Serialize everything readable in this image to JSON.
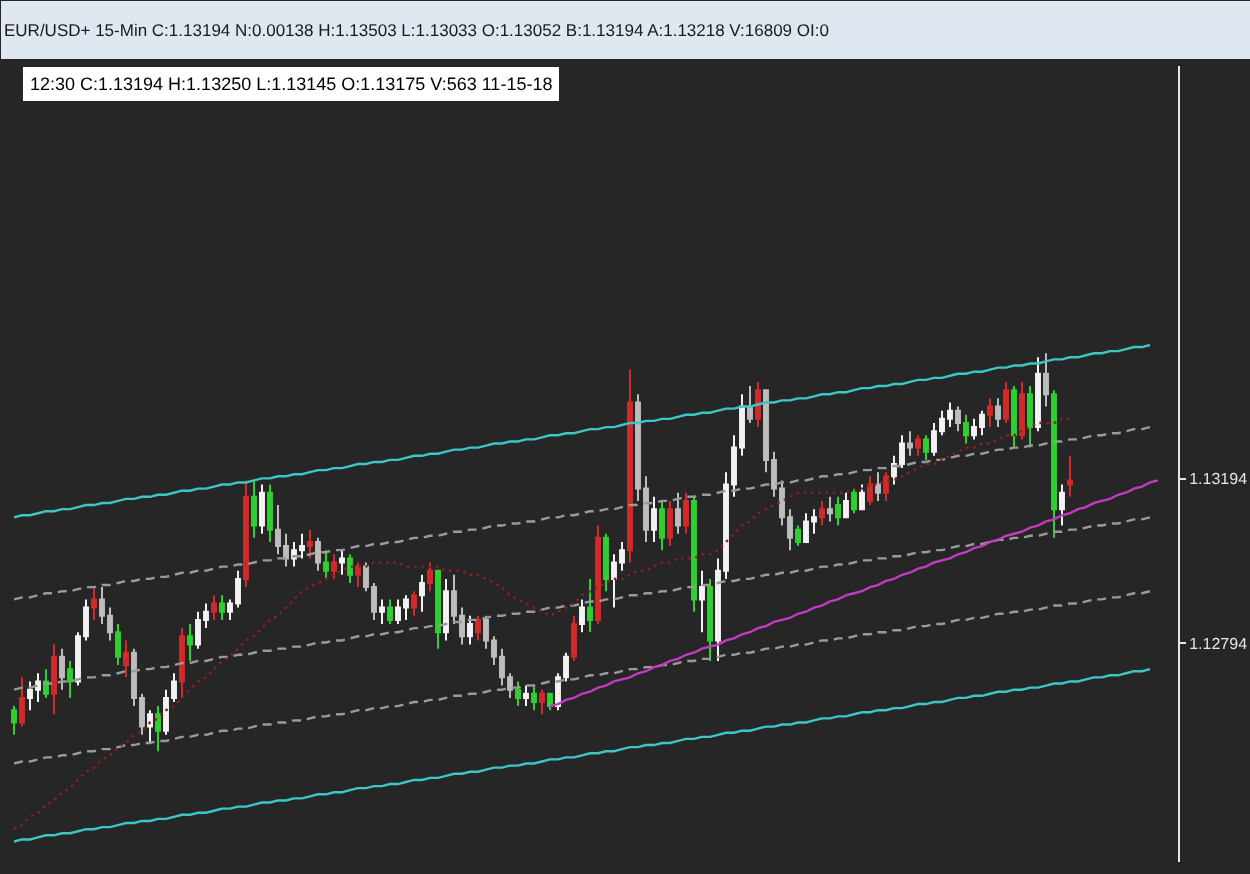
{
  "chart_data": {
    "type": "candlestick",
    "title": "EUR/USD+ 15-Min C:1.13194 N:0.00138 H:1.13503 L:1.13033 O:1.13052 B:1.13194 A:1.13218 V:16809 OI:0",
    "subtitle": "12:30 C:1.13194 H:1.13250 L:1.13145 O:1.13175 V:563 11-15-18",
    "categories": [
      null,
      null,
      null,
      null,
      null,
      null,
      null,
      null,
      null,
      null,
      null,
      null,
      null,
      null,
      null,
      null,
      null,
      null,
      null,
      null,
      null,
      null,
      null,
      null,
      null,
      null,
      null,
      null,
      null,
      null,
      null,
      null,
      null,
      null,
      null,
      null,
      null,
      null,
      null,
      null,
      null,
      null,
      null,
      null,
      null,
      null,
      null,
      null,
      null,
      null,
      null,
      null,
      null,
      null,
      null,
      null,
      null,
      null,
      null,
      null,
      null,
      null,
      null,
      null,
      null,
      null,
      null,
      null,
      null,
      null,
      null,
      null,
      null,
      null,
      null,
      null,
      null,
      null,
      null,
      null,
      null,
      null,
      null,
      null,
      null,
      null,
      null,
      null,
      null,
      null,
      null,
      null,
      null,
      null,
      null,
      null,
      null,
      null,
      null,
      null,
      null,
      null,
      null,
      null,
      null,
      null,
      null,
      null,
      null,
      null,
      null,
      null,
      null,
      null,
      null,
      null,
      null,
      null,
      null,
      null,
      null,
      null,
      null,
      null,
      null,
      null,
      null,
      null,
      null,
      null,
      null,
      null,
      null,
      null,
      null,
      null,
      null,
      null,
      null,
      null,
      null,
      null,
      null,
      null,
      null,
      null
    ],
    "ohlc": [
      [
        1.1263,
        1.1264,
        1.1257,
        1.126
      ],
      [
        1.126,
        1.1271,
        1.1259,
        1.1266
      ],
      [
        1.1266,
        1.127,
        1.1263,
        1.1268
      ],
      [
        1.1268,
        1.1272,
        1.1265,
        1.127
      ],
      [
        1.127,
        1.1273,
        1.1266,
        1.1267
      ],
      [
        1.1267,
        1.1279,
        1.1262,
        1.1276
      ],
      [
        1.1276,
        1.1278,
        1.1268,
        1.1271
      ],
      [
        1.1273,
        1.1275,
        1.1266,
        1.127
      ],
      [
        1.127,
        1.1282,
        1.1269,
        1.1281
      ],
      [
        1.1281,
        1.129,
        1.128,
        1.1288
      ],
      [
        1.1288,
        1.1293,
        1.1285,
        1.129
      ],
      [
        1.129,
        1.1293,
        1.1284,
        1.1286
      ],
      [
        1.1286,
        1.1288,
        1.128,
        1.1282
      ],
      [
        1.1282,
        1.1284,
        1.1274,
        1.1276
      ],
      [
        1.1274,
        1.128,
        1.1271,
        1.1277
      ],
      [
        1.1277,
        1.1278,
        1.1264,
        1.1266
      ],
      [
        1.1266,
        1.1267,
        1.1257,
        1.1259
      ],
      [
        1.1259,
        1.1263,
        1.1255,
        1.1262
      ],
      [
        1.1262,
        1.1264,
        1.1253,
        1.1258
      ],
      [
        1.1258,
        1.1268,
        1.1257,
        1.1266
      ],
      [
        1.1266,
        1.1272,
        1.1265,
        1.127
      ],
      [
        1.127,
        1.1283,
        1.1266,
        1.1281
      ],
      [
        1.1281,
        1.1284,
        1.1275,
        1.1279
      ],
      [
        1.1279,
        1.1287,
        1.1278,
        1.1285
      ],
      [
        1.1285,
        1.1289,
        1.1283,
        1.1287
      ],
      [
        1.1287,
        1.1291,
        1.1285,
        1.1289
      ],
      [
        1.1289,
        1.1291,
        1.1285,
        1.1287
      ],
      [
        1.1287,
        1.129,
        1.1285,
        1.1289
      ],
      [
        1.1289,
        1.1297,
        1.1288,
        1.1295
      ],
      [
        1.1295,
        1.1319,
        1.1293,
        1.1315
      ],
      [
        1.1315,
        1.1319,
        1.1305,
        1.1308
      ],
      [
        1.1308,
        1.1318,
        1.1306,
        1.1316
      ],
      [
        1.1316,
        1.1318,
        1.1304,
        1.1307
      ],
      [
        1.1307,
        1.1313,
        1.1301,
        1.1303
      ],
      [
        1.1303,
        1.1306,
        1.1298,
        1.13
      ],
      [
        1.13,
        1.1304,
        1.1298,
        1.1302
      ],
      [
        1.1302,
        1.1306,
        1.13,
        1.1303
      ],
      [
        1.1303,
        1.1307,
        1.13,
        1.1304
      ],
      [
        1.1304,
        1.1305,
        1.1297,
        1.1299
      ],
      [
        1.1299,
        1.1302,
        1.1295,
        1.1297
      ],
      [
        1.1297,
        1.1301,
        1.1295,
        1.1299
      ],
      [
        1.1299,
        1.1302,
        1.1296,
        1.13
      ],
      [
        1.13,
        1.1301,
        1.1294,
        1.1296
      ],
      [
        1.1296,
        1.1299,
        1.1293,
        1.1298
      ],
      [
        1.1298,
        1.1299,
        1.1292,
        1.1293
      ],
      [
        1.1293,
        1.1294,
        1.1285,
        1.1287
      ],
      [
        1.1287,
        1.129,
        1.1284,
        1.1288
      ],
      [
        1.1288,
        1.129,
        1.1284,
        1.1285
      ],
      [
        1.1285,
        1.129,
        1.1284,
        1.1288
      ],
      [
        1.1288,
        1.1291,
        1.1285,
        1.129
      ],
      [
        1.1288,
        1.1292,
        1.1286,
        1.1291
      ],
      [
        1.1291,
        1.1296,
        1.1287,
        1.1294
      ],
      [
        1.1294,
        1.1299,
        1.1292,
        1.1297
      ],
      [
        1.1297,
        1.1297,
        1.1278,
        1.1282
      ],
      [
        1.1282,
        1.1295,
        1.128,
        1.1292
      ],
      [
        1.1292,
        1.1296,
        1.1284,
        1.1286
      ],
      [
        1.1286,
        1.1288,
        1.1279,
        1.1281
      ],
      [
        1.1281,
        1.1286,
        1.1279,
        1.1284
      ],
      [
        1.1282,
        1.1286,
        1.128,
        1.1285
      ],
      [
        1.1285,
        1.1286,
        1.1278,
        1.128
      ],
      [
        1.128,
        1.1281,
        1.1274,
        1.1276
      ],
      [
        1.1276,
        1.1278,
        1.1269,
        1.1271
      ],
      [
        1.1271,
        1.1272,
        1.1266,
        1.1268
      ],
      [
        1.1268,
        1.127,
        1.1264,
        1.1266
      ],
      [
        1.1266,
        1.1269,
        1.1264,
        1.1267
      ],
      [
        1.1267,
        1.1269,
        1.1263,
        1.1265
      ],
      [
        1.1265,
        1.1268,
        1.1262,
        1.1267
      ],
      [
        1.1267,
        1.1267,
        1.1263,
        1.1264
      ],
      [
        1.1264,
        1.1272,
        1.1263,
        1.1271
      ],
      [
        1.1271,
        1.1277,
        1.127,
        1.1276
      ],
      [
        1.1276,
        1.1286,
        1.1275,
        1.1284
      ],
      [
        1.1284,
        1.129,
        1.1282,
        1.1288
      ],
      [
        1.1288,
        1.1295,
        1.1282,
        1.1285
      ],
      [
        1.1285,
        1.1308,
        1.1284,
        1.1305
      ],
      [
        1.1305,
        1.1306,
        1.1292,
        1.1295
      ],
      [
        1.1295,
        1.1301,
        1.1288,
        1.1299
      ],
      [
        1.1299,
        1.1304,
        1.1297,
        1.1302
      ],
      [
        1.1302,
        1.1346,
        1.1299,
        1.1338
      ],
      [
        1.1338,
        1.134,
        1.1314,
        1.1317
      ],
      [
        1.1317,
        1.132,
        1.1304,
        1.1307
      ],
      [
        1.1307,
        1.1315,
        1.1304,
        1.1312
      ],
      [
        1.1312,
        1.1314,
        1.1302,
        1.1305
      ],
      [
        1.1305,
        1.1314,
        1.1303,
        1.1312
      ],
      [
        1.1312,
        1.1316,
        1.1306,
        1.1308
      ],
      [
        1.1308,
        1.1316,
        1.1306,
        1.1314
      ],
      [
        1.1314,
        1.1315,
        1.1287,
        1.129
      ],
      [
        1.129,
        1.1297,
        1.1282,
        1.1293
      ],
      [
        1.1293,
        1.1295,
        1.1275,
        1.128
      ],
      [
        1.128,
        1.13,
        1.1275,
        1.1297
      ],
      [
        1.1297,
        1.1321,
        1.1295,
        1.1318
      ],
      [
        1.1318,
        1.133,
        1.1315,
        1.1327
      ],
      [
        1.1327,
        1.134,
        1.1325,
        1.1337
      ],
      [
        1.1337,
        1.1342,
        1.1333,
        1.1334
      ],
      [
        1.1334,
        1.1343,
        1.1332,
        1.1341
      ],
      [
        1.1341,
        1.1341,
        1.1321,
        1.1324
      ],
      [
        1.1324,
        1.1326,
        1.1315,
        1.1317
      ],
      [
        1.1317,
        1.1319,
        1.1308,
        1.131
      ],
      [
        1.131,
        1.1312,
        1.1302,
        1.1305
      ],
      [
        1.1307,
        1.1308,
        1.1303,
        1.1304
      ],
      [
        1.1304,
        1.1311,
        1.1304,
        1.1309
      ],
      [
        1.1309,
        1.1312,
        1.1306,
        1.131
      ],
      [
        1.131,
        1.1314,
        1.1308,
        1.1312
      ],
      [
        1.1312,
        1.1315,
        1.1309,
        1.1311
      ],
      [
        1.1313,
        1.1315,
        1.1308,
        1.131
      ],
      [
        1.131,
        1.1316,
        1.131,
        1.1314
      ],
      [
        1.1316,
        1.1317,
        1.1311,
        1.1312
      ],
      [
        1.1312,
        1.1318,
        1.1312,
        1.1316
      ],
      [
        1.1314,
        1.132,
        1.1313,
        1.1318
      ],
      [
        1.1318,
        1.1321,
        1.1314,
        1.1316
      ],
      [
        1.1316,
        1.1321,
        1.1314,
        1.132
      ],
      [
        1.132,
        1.1325,
        1.1318,
        1.1323
      ],
      [
        1.1323,
        1.133,
        1.1322,
        1.1328
      ],
      [
        1.1328,
        1.1331,
        1.1325,
        1.1327
      ],
      [
        1.1327,
        1.133,
        1.1325,
        1.1329
      ],
      [
        1.1329,
        1.133,
        1.1324,
        1.1326
      ],
      [
        1.1326,
        1.1333,
        1.1325,
        1.1331
      ],
      [
        1.1331,
        1.1336,
        1.133,
        1.1334
      ],
      [
        1.1334,
        1.1338,
        1.1332,
        1.1336
      ],
      [
        1.1336,
        1.1337,
        1.1331,
        1.1333
      ],
      [
        1.1333,
        1.1335,
        1.1328,
        1.133
      ],
      [
        1.133,
        1.1334,
        1.1329,
        1.1332
      ],
      [
        1.1332,
        1.1336,
        1.133,
        1.1335
      ],
      [
        1.1335,
        1.1339,
        1.1332,
        1.1337
      ],
      [
        1.1337,
        1.1339,
        1.1332,
        1.1334
      ],
      [
        1.1334,
        1.1343,
        1.1333,
        1.1341
      ],
      [
        1.1341,
        1.1342,
        1.1327,
        1.133
      ],
      [
        1.133,
        1.1343,
        1.1329,
        1.134
      ],
      [
        1.134,
        1.1342,
        1.1327,
        1.1332
      ],
      [
        1.1332,
        1.1349,
        1.1331,
        1.1345
      ],
      [
        1.1345,
        1.135,
        1.1337,
        1.134
      ],
      [
        1.134,
        1.1341,
        1.1305,
        1.1312
      ],
      [
        1.1312,
        1.1318,
        1.1308,
        1.1316
      ],
      [
        1.1318,
        1.1325,
        1.1315,
        1.1319
      ],
      null,
      null,
      null,
      null,
      null,
      null,
      null,
      null,
      null,
      null,
      null,
      null,
      null
    ],
    "colors": [
      "#2fd02f",
      "#d02a2a",
      "#f2f2f2",
      "#f2f2f2",
      "#2fd02f",
      "#d02a2a",
      "#bdbdbd",
      "#2fd02f",
      "#f2f2f2",
      "#f2f2f2",
      "#d02a2a",
      "#bdbdbd",
      "#bdbdbd",
      "#2fd02f",
      "#d02a2a",
      "#bdbdbd",
      "#bdbdbd",
      "#f2f2f2",
      "#2fd02f",
      "#f2f2f2",
      "#f2f2f2",
      "#d02a2a",
      "#2fd02f",
      "#f2f2f2",
      "#f2f2f2",
      "#d02a2a",
      "#2fd02f",
      "#f2f2f2",
      "#f2f2f2",
      "#d02a2a",
      "#2fd02f",
      "#f2f2f2",
      "#2fd02f",
      "#bdbdbd",
      "#bdbdbd",
      "#f2f2f2",
      "#f2f2f2",
      "#d02a2a",
      "#bdbdbd",
      "#2fd02f",
      "#d02a2a",
      "#f2f2f2",
      "#2fd02f",
      "#d02a2a",
      "#bdbdbd",
      "#bdbdbd",
      "#f2f2f2",
      "#2fd02f",
      "#f2f2f2",
      "#f2f2f2",
      "#d02a2a",
      "#f2f2f2",
      "#d02a2a",
      "#2fd02f",
      "#f2f2f2",
      "#bdbdbd",
      "#bdbdbd",
      "#f2f2f2",
      "#d02a2a",
      "#bdbdbd",
      "#bdbdbd",
      "#bdbdbd",
      "#bdbdbd",
      "#2fd02f",
      "#f2f2f2",
      "#2fd02f",
      "#d02a2a",
      "#2fd02f",
      "#f2f2f2",
      "#f2f2f2",
      "#d02a2a",
      "#f2f2f2",
      "#2fd02f",
      "#d02a2a",
      "#2fd02f",
      "#f2f2f2",
      "#f2f2f2",
      "#d02a2a",
      "#bdbdbd",
      "#bdbdbd",
      "#f2f2f2",
      "#2fd02f",
      "#d02a2a",
      "#bdbdbd",
      "#d02a2a",
      "#2fd02f",
      "#f2f2f2",
      "#2fd02f",
      "#f2f2f2",
      "#f2f2f2",
      "#f2f2f2",
      "#f2f2f2",
      "#bdbdbd",
      "#d02a2a",
      "#bdbdbd",
      "#bdbdbd",
      "#bdbdbd",
      "#bdbdbd",
      "#2fd02f",
      "#f2f2f2",
      "#f2f2f2",
      "#d02a2a",
      "#bdbdbd",
      "#2fd02f",
      "#f2f2f2",
      "#2fd02f",
      "#f2f2f2",
      "#d02a2a",
      "#bdbdbd",
      "#d02a2a",
      "#f2f2f2",
      "#f2f2f2",
      "#bdbdbd",
      "#d02a2a",
      "#2fd02f",
      "#f2f2f2",
      "#f2f2f2",
      "#f2f2f2",
      "#bdbdbd",
      "#2fd02f",
      "#f2f2f2",
      "#f2f2f2",
      "#d02a2a",
      "#bdbdbd",
      "#d02a2a",
      "#2fd02f",
      "#d02a2a",
      "#2fd02f",
      "#f2f2f2",
      "#bdbdbd",
      "#2fd02f",
      "#f2f2f2",
      "#d02a2a",
      null,
      null,
      null,
      null,
      null,
      null,
      null,
      null,
      null,
      null,
      null,
      null,
      null
    ],
    "series": [
      {
        "type": "line",
        "color": "#3cc6c6",
        "line_style": "solid",
        "values": [
          1.131,
          1.13105,
          1.13105,
          1.1311,
          1.13115,
          1.13115,
          1.1312,
          1.1312,
          1.13125,
          1.1313,
          1.1313,
          1.13135,
          1.13135,
          1.1314,
          1.13145,
          1.13145,
          1.1315,
          1.1315,
          1.13155,
          1.13155,
          1.1316,
          1.13165,
          1.13165,
          1.1317,
          1.1317,
          1.13175,
          1.1318,
          1.1318,
          1.13185,
          1.13185,
          1.1319,
          1.13195,
          1.13195,
          1.132,
          1.132,
          1.13205,
          1.13205,
          1.1321,
          1.13215,
          1.13215,
          1.1322,
          1.1322,
          1.13225,
          1.1323,
          1.1323,
          1.13235,
          1.13235,
          1.1324,
          1.1324,
          1.13245,
          1.1325,
          1.1325,
          1.13255,
          1.13255,
          1.1326,
          1.13265,
          1.13265,
          1.1327,
          1.1327,
          1.13275,
          1.1328,
          1.1328,
          1.13285,
          1.13285,
          1.1329,
          1.1329,
          1.13295,
          1.133,
          1.133,
          1.13305,
          1.13305,
          1.1331,
          1.13315,
          1.13315,
          1.1332,
          1.1332,
          1.13325,
          1.1333,
          1.1333,
          1.13335,
          1.13335,
          1.1334,
          1.1334,
          1.13345,
          1.1335,
          1.1335,
          1.13355,
          1.13355,
          1.1336,
          1.13365,
          1.13365,
          1.1337,
          1.1337,
          1.13375,
          1.1338,
          1.1338,
          1.13385,
          1.13385,
          1.1339,
          1.1339,
          1.13395,
          1.134,
          1.134,
          1.13405,
          1.13405,
          1.1341,
          1.13415,
          1.13415,
          1.1342,
          1.1342,
          1.13425,
          1.13425,
          1.1343,
          1.13435,
          1.13435,
          1.1344,
          1.1344,
          1.13445,
          1.1345,
          1.1345,
          1.13455,
          1.13455,
          1.1346,
          1.13465,
          1.13465,
          1.1347,
          1.1347,
          1.13475,
          1.13475,
          1.1348,
          1.13485,
          1.13485,
          1.1349,
          1.1349,
          1.13495,
          1.135,
          1.135,
          1.13505,
          1.13505,
          1.1351,
          1.13515,
          1.13515,
          1.1352,
          null,
          null,
          null
        ]
      },
      {
        "type": "line",
        "color": "#3cc6c6",
        "line_style": "solid",
        "values": [
          1.1231,
          1.12315,
          1.12315,
          1.1232,
          1.12325,
          1.12325,
          1.1233,
          1.1233,
          1.12335,
          1.1234,
          1.1234,
          1.12345,
          1.12345,
          1.1235,
          1.12355,
          1.12355,
          1.1236,
          1.1236,
          1.12365,
          1.12365,
          1.1237,
          1.12375,
          1.12375,
          1.1238,
          1.1238,
          1.12385,
          1.1239,
          1.1239,
          1.12395,
          1.12395,
          1.124,
          1.12405,
          1.12405,
          1.1241,
          1.1241,
          1.12415,
          1.12415,
          1.1242,
          1.12425,
          1.12425,
          1.1243,
          1.1243,
          1.12435,
          1.1244,
          1.1244,
          1.12445,
          1.12445,
          1.1245,
          1.1245,
          1.12455,
          1.1246,
          1.1246,
          1.12465,
          1.12465,
          1.1247,
          1.12475,
          1.12475,
          1.1248,
          1.1248,
          1.12485,
          1.1249,
          1.1249,
          1.12495,
          1.12495,
          1.125,
          1.125,
          1.12505,
          1.1251,
          1.1251,
          1.12515,
          1.12515,
          1.1252,
          1.12525,
          1.12525,
          1.1253,
          1.1253,
          1.12535,
          1.1254,
          1.1254,
          1.12545,
          1.12545,
          1.1255,
          1.1255,
          1.12555,
          1.1256,
          1.1256,
          1.12565,
          1.12565,
          1.1257,
          1.12575,
          1.12575,
          1.1258,
          1.1258,
          1.12585,
          1.1259,
          1.1259,
          1.12595,
          1.12595,
          1.126,
          1.126,
          1.12605,
          1.1261,
          1.1261,
          1.12615,
          1.12615,
          1.1262,
          1.12625,
          1.12625,
          1.1263,
          1.1263,
          1.12635,
          1.12635,
          1.1264,
          1.12645,
          1.12645,
          1.1265,
          1.1265,
          1.12655,
          1.1266,
          1.1266,
          1.12665,
          1.12665,
          1.1267,
          1.12675,
          1.12675,
          1.1268,
          1.1268,
          1.12685,
          1.12685,
          1.1269,
          1.12695,
          1.12695,
          1.127,
          1.127,
          1.12705,
          1.1271,
          1.1271,
          1.12715,
          1.12715,
          1.1272,
          1.12725,
          1.12725,
          1.1273,
          null,
          null,
          null
        ]
      },
      {
        "type": "line",
        "color": "#9a9a9a",
        "line_style": "dashed",
        "values": [
          1.129,
          1.12905,
          1.12905,
          1.1291,
          1.12915,
          1.12915,
          1.1292,
          1.1292,
          1.12925,
          1.1293,
          1.1293,
          1.12935,
          1.12935,
          1.1294,
          1.12945,
          1.12945,
          1.1295,
          1.1295,
          1.12955,
          1.12955,
          1.1296,
          1.12965,
          1.12965,
          1.1297,
          1.1297,
          1.12975,
          1.1298,
          1.1298,
          1.12985,
          1.12985,
          1.1299,
          1.12995,
          1.12995,
          1.13,
          1.13,
          1.13005,
          1.13005,
          1.1301,
          1.13015,
          1.13015,
          1.1302,
          1.1302,
          1.13025,
          1.1303,
          1.1303,
          1.13035,
          1.13035,
          1.1304,
          1.1304,
          1.13045,
          1.1305,
          1.1305,
          1.13055,
          1.13055,
          1.1306,
          1.13065,
          1.13065,
          1.1307,
          1.1307,
          1.13075,
          1.1308,
          1.1308,
          1.13085,
          1.13085,
          1.1309,
          1.1309,
          1.13095,
          1.131,
          1.131,
          1.13105,
          1.13105,
          1.1311,
          1.13115,
          1.13115,
          1.1312,
          1.1312,
          1.13125,
          1.1313,
          1.1313,
          1.13135,
          1.13135,
          1.1314,
          1.1314,
          1.13145,
          1.1315,
          1.1315,
          1.13155,
          1.13155,
          1.1316,
          1.13165,
          1.13165,
          1.1317,
          1.1317,
          1.13175,
          1.1318,
          1.1318,
          1.13185,
          1.13185,
          1.1319,
          1.1319,
          1.13195,
          1.132,
          1.132,
          1.13205,
          1.13205,
          1.1321,
          1.13215,
          1.13215,
          1.1322,
          1.1322,
          1.13225,
          1.13225,
          1.1323,
          1.13235,
          1.13235,
          1.1324,
          1.1324,
          1.13245,
          1.1325,
          1.1325,
          1.13255,
          1.13255,
          1.1326,
          1.13265,
          1.13265,
          1.1327,
          1.1327,
          1.13275,
          1.13275,
          1.1328,
          1.13285,
          1.13285,
          1.1329,
          1.1329,
          1.13295,
          1.133,
          1.133,
          1.13305,
          1.13305,
          1.1331,
          1.13315,
          1.13315,
          1.1332,
          null,
          null,
          null
        ]
      },
      {
        "type": "line",
        "color": "#9a9a9a",
        "line_style": "dashed",
        "values": [
          1.1268,
          1.12685,
          1.12685,
          1.1269,
          1.12695,
          1.12695,
          1.127,
          1.127,
          1.12705,
          1.1271,
          1.1271,
          1.12715,
          1.12715,
          1.1272,
          1.12725,
          1.12725,
          1.1273,
          1.1273,
          1.12735,
          1.12735,
          1.1274,
          1.12745,
          1.12745,
          1.1275,
          1.1275,
          1.12755,
          1.1276,
          1.1276,
          1.12765,
          1.12765,
          1.1277,
          1.12775,
          1.12775,
          1.1278,
          1.1278,
          1.12785,
          1.12785,
          1.1279,
          1.12795,
          1.12795,
          1.128,
          1.128,
          1.12805,
          1.1281,
          1.1281,
          1.12815,
          1.12815,
          1.1282,
          1.1282,
          1.12825,
          1.1283,
          1.1283,
          1.12835,
          1.12835,
          1.1284,
          1.12845,
          1.12845,
          1.1285,
          1.1285,
          1.12855,
          1.1286,
          1.1286,
          1.12865,
          1.12865,
          1.1287,
          1.1287,
          1.12875,
          1.1288,
          1.1288,
          1.12885,
          1.12885,
          1.1289,
          1.12895,
          1.12895,
          1.129,
          1.129,
          1.12905,
          1.1291,
          1.1291,
          1.12915,
          1.12915,
          1.1292,
          1.1292,
          1.12925,
          1.1293,
          1.1293,
          1.12935,
          1.12935,
          1.1294,
          1.12945,
          1.12945,
          1.1295,
          1.1295,
          1.12955,
          1.1296,
          1.1296,
          1.12965,
          1.12965,
          1.1297,
          1.1297,
          1.12975,
          1.1298,
          1.1298,
          1.12985,
          1.12985,
          1.1299,
          1.12995,
          1.12995,
          1.13,
          1.13,
          1.13005,
          1.13005,
          1.1301,
          1.13015,
          1.13015,
          1.1302,
          1.1302,
          1.13025,
          1.1303,
          1.1303,
          1.13035,
          1.13035,
          1.1304,
          1.13045,
          1.13045,
          1.1305,
          1.1305,
          1.13055,
          1.13055,
          1.1306,
          1.13065,
          1.13065,
          1.1307,
          1.1307,
          1.13075,
          1.1308,
          1.1308,
          1.13085,
          1.13085,
          1.1309,
          1.13095,
          1.13095,
          1.131,
          null,
          null,
          null
        ]
      },
      {
        "type": "line",
        "color": "#9a9a9a",
        "line_style": "dashed",
        "values": [
          1.125,
          1.12505,
          1.12505,
          1.1251,
          1.12515,
          1.12515,
          1.1252,
          1.1252,
          1.12525,
          1.1253,
          1.1253,
          1.12535,
          1.12535,
          1.1254,
          1.12545,
          1.12545,
          1.1255,
          1.1255,
          1.12555,
          1.12555,
          1.1256,
          1.12565,
          1.12565,
          1.1257,
          1.1257,
          1.12575,
          1.1258,
          1.1258,
          1.12585,
          1.12585,
          1.1259,
          1.12595,
          1.12595,
          1.126,
          1.126,
          1.12605,
          1.12605,
          1.1261,
          1.12615,
          1.12615,
          1.1262,
          1.1262,
          1.12625,
          1.1263,
          1.1263,
          1.12635,
          1.12635,
          1.1264,
          1.1264,
          1.12645,
          1.1265,
          1.1265,
          1.12655,
          1.12655,
          1.1266,
          1.12665,
          1.12665,
          1.1267,
          1.1267,
          1.12675,
          1.1268,
          1.1268,
          1.12685,
          1.12685,
          1.1269,
          1.1269,
          1.12695,
          1.127,
          1.127,
          1.12705,
          1.12705,
          1.1271,
          1.12715,
          1.12715,
          1.1272,
          1.1272,
          1.12725,
          1.1273,
          1.1273,
          1.12735,
          1.12735,
          1.1274,
          1.1274,
          1.12745,
          1.1275,
          1.1275,
          1.12755,
          1.12755,
          1.1276,
          1.12765,
          1.12765,
          1.1277,
          1.1277,
          1.12775,
          1.1278,
          1.1278,
          1.12785,
          1.12785,
          1.1279,
          1.1279,
          1.12795,
          1.128,
          1.128,
          1.12805,
          1.12805,
          1.1281,
          1.12815,
          1.12815,
          1.1282,
          1.1282,
          1.12825,
          1.12825,
          1.1283,
          1.12835,
          1.12835,
          1.1284,
          1.1284,
          1.12845,
          1.1285,
          1.1285,
          1.12855,
          1.12855,
          1.1286,
          1.12865,
          1.12865,
          1.1287,
          1.1287,
          1.12875,
          1.12875,
          1.1288,
          1.12885,
          1.12885,
          1.1289,
          1.1289,
          1.12895,
          1.129,
          1.129,
          1.12905,
          1.12905,
          1.1291,
          1.12915,
          1.12915,
          1.1292,
          null,
          null,
          null
        ]
      },
      {
        "type": "line",
        "color": "#c23cc2",
        "line_style": "solid",
        "values": [
          null,
          null,
          null,
          null,
          null,
          null,
          null,
          null,
          null,
          null,
          null,
          null,
          null,
          null,
          null,
          null,
          null,
          null,
          null,
          null,
          null,
          null,
          null,
          null,
          null,
          null,
          null,
          null,
          null,
          null,
          null,
          null,
          null,
          null,
          null,
          null,
          null,
          null,
          null,
          null,
          null,
          null,
          null,
          null,
          null,
          null,
          null,
          null,
          null,
          null,
          null,
          null,
          null,
          null,
          null,
          null,
          null,
          null,
          null,
          null,
          null,
          null,
          null,
          null,
          null,
          null,
          null,
          1.1264,
          1.12645,
          1.12655,
          1.1266,
          1.1267,
          1.12675,
          1.12685,
          1.1269,
          1.127,
          1.12705,
          1.1271,
          1.1272,
          1.12725,
          1.12735,
          1.1274,
          1.1275,
          1.12755,
          1.12765,
          1.1277,
          1.1278,
          1.12785,
          1.1279,
          1.128,
          1.12805,
          1.12815,
          1.1282,
          1.1283,
          1.12835,
          1.12845,
          1.1285,
          1.12855,
          1.12865,
          1.1287,
          1.1288,
          1.12885,
          1.12895,
          1.129,
          1.1291,
          1.12915,
          1.1292,
          1.1293,
          1.12935,
          1.12945,
          1.1295,
          1.1296,
          1.12965,
          1.12975,
          1.1298,
          1.1299,
          1.12995,
          1.13,
          1.1301,
          1.13015,
          1.13025,
          1.1303,
          1.1304,
          1.13045,
          1.13055,
          1.1306,
          1.13065,
          1.13075,
          1.1308,
          1.1309,
          1.13095,
          1.13105,
          1.1311,
          1.1312,
          1.13125,
          1.13135,
          1.1314,
          1.13145,
          1.13155,
          1.1316,
          1.1317,
          1.13175,
          1.13185,
          1.1319,
          null,
          null
        ]
      },
      {
        "type": "line",
        "color": "#8b2020",
        "line_style": "dotted",
        "values": [
          1.1234,
          1.1235,
          1.1237,
          1.1238,
          1.124,
          1.1241,
          1.1243,
          1.1244,
          1.1246,
          1.1248,
          1.1249,
          1.1251,
          1.1252,
          1.1254,
          1.1255,
          1.1257,
          1.1258,
          1.126,
          1.1261,
          1.1263,
          1.1264,
          1.1266,
          1.1268,
          1.127,
          1.1271,
          1.1273,
          1.1275,
          1.1276,
          1.1278,
          1.128,
          1.1281,
          1.1283,
          1.1285,
          1.1286,
          1.1288,
          1.129,
          1.1292,
          1.1293,
          1.1294,
          1.1295,
          1.1296,
          1.1297,
          1.1298,
          1.1298,
          1.1298,
          1.1299,
          1.1299,
          1.1299,
          1.1299,
          1.1298,
          1.1298,
          1.1298,
          1.1298,
          1.1298,
          1.1297,
          1.1297,
          1.1297,
          1.1296,
          1.1296,
          1.1295,
          1.1294,
          1.1293,
          1.1291,
          1.129,
          1.1289,
          1.1288,
          1.1287,
          1.1286,
          1.1287,
          1.1288,
          1.1289,
          1.1291,
          1.1292,
          1.1293,
          1.1294,
          1.1295,
          1.1295,
          1.1296,
          1.1297,
          1.1297,
          1.1298,
          1.1299,
          1.1299,
          1.13,
          1.13,
          1.13,
          1.1301,
          1.1301,
          1.1302,
          1.1304,
          1.1306,
          1.1308,
          1.1309,
          1.1311,
          1.1312,
          1.1313,
          1.1314,
          1.1315,
          1.1316,
          1.1316,
          1.1316,
          1.1316,
          1.1316,
          1.1316,
          1.1316,
          1.1317,
          1.1317,
          1.1318,
          1.1318,
          1.1319,
          1.1319,
          1.132,
          1.1321,
          1.1322,
          1.1323,
          1.1323,
          1.1324,
          1.1325,
          1.1326,
          1.1327,
          1.1327,
          1.1328,
          1.1328,
          1.1329,
          1.133,
          1.133,
          1.1331,
          1.1332,
          1.1333,
          1.1333,
          1.1333,
          1.1334,
          1.1334,
          null,
          null,
          null,
          null,
          null,
          null,
          null,
          null,
          null,
          null,
          null,
          null,
          null
        ]
      }
    ],
    "ylim": [
      1.1226,
      1.142
    ],
    "yticks": [
      1.12794,
      1.13194
    ],
    "tick_labels": "y"
  }
}
